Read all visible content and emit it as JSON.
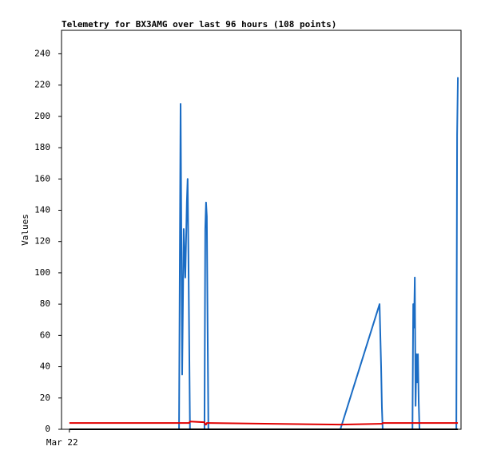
{
  "chart_data": {
    "type": "line",
    "title": "Telemetry for BX3AMG over last 96 hours (108 points)",
    "y_label": "Values",
    "x": [
      0,
      28.0,
      28.2,
      28.4,
      28.8,
      29.2,
      29.6,
      30.0,
      30.2,
      30.4,
      30.6,
      30.8,
      34.5,
      34.7,
      34.9,
      35.1,
      35.3,
      35.5,
      69.2,
      79.2,
      79.6,
      79.8,
      80.0,
      87.6,
      87.8,
      88.0,
      88.2,
      88.4,
      88.6,
      88.8,
      89.0,
      89.2,
      89.4,
      98.8,
      99.0,
      99.2
    ],
    "series": [
      {
        "color": "#1a6cc4",
        "values": [
          0,
          0,
          104,
          208,
          35,
          128,
          97,
          145,
          160,
          112,
          56,
          0,
          0,
          128,
          145,
          136,
          65,
          0,
          0,
          80,
          40,
          14,
          0,
          0,
          80,
          65,
          97,
          15,
          48,
          30,
          48,
          17,
          0,
          0,
          188,
          225
        ]
      },
      {
        "color": "#e00000",
        "values": [
          4,
          4,
          4,
          4,
          4,
          4,
          4,
          4,
          4,
          4,
          4,
          5,
          4.5,
          3,
          3,
          4,
          4,
          4,
          3,
          3.5,
          3.5,
          3.5,
          4,
          4,
          4,
          4,
          4,
          4,
          4,
          4,
          4,
          4,
          4,
          4,
          4,
          4
        ]
      },
      {
        "color": "#000000",
        "values": [
          0,
          0,
          0,
          0,
          0,
          0,
          0,
          0,
          0,
          0,
          0,
          0,
          0,
          0,
          0,
          0,
          0,
          0,
          0,
          0,
          0,
          0,
          0,
          0,
          0,
          0,
          0,
          0,
          0,
          0,
          0,
          0,
          0,
          0,
          0,
          0
        ]
      }
    ],
    "xlim": [
      -2,
      100
    ],
    "xticks": [
      {
        "value": 0,
        "label": "Mar 22"
      }
    ],
    "ylim": [
      0,
      255
    ],
    "yticks": [
      0,
      20,
      40,
      60,
      80,
      100,
      120,
      140,
      160,
      180,
      200,
      220,
      240
    ]
  }
}
